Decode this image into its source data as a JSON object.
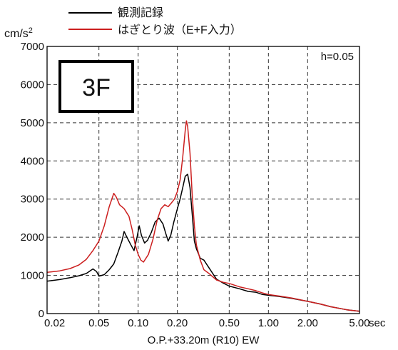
{
  "chart_data": {
    "type": "line",
    "xscale": "log",
    "xlim": [
      0.02,
      5.0
    ],
    "ylim": [
      0,
      7000
    ],
    "xticks": [
      0.02,
      0.05,
      0.1,
      0.2,
      0.5,
      1.0,
      2.0,
      5.0
    ],
    "xtick_labels": [
      "0.02",
      "0.05",
      "0.10",
      "0.20",
      "0.50",
      "1.00",
      "2.00",
      "5.00"
    ],
    "x_unit": "sec",
    "yticks": [
      0,
      1000,
      2000,
      3000,
      4000,
      5000,
      6000,
      7000
    ],
    "ytick_labels": [
      "0",
      "1000",
      "2000",
      "3000",
      "4000",
      "5000",
      "6000",
      "7000"
    ],
    "y_unit": "cm/s",
    "y_unit_exp": "2",
    "xlabel": "O.P.+33.20m (R10) EW",
    "floor_label": "3F",
    "annotation": "h=0.05",
    "grid": true,
    "legend_position": "top",
    "series": [
      {
        "name": "観測記録",
        "color": "#000000",
        "points": [
          [
            0.02,
            850
          ],
          [
            0.025,
            890
          ],
          [
            0.03,
            940
          ],
          [
            0.035,
            990
          ],
          [
            0.04,
            1050
          ],
          [
            0.045,
            1170
          ],
          [
            0.048,
            1100
          ],
          [
            0.05,
            980
          ],
          [
            0.055,
            1020
          ],
          [
            0.06,
            1150
          ],
          [
            0.065,
            1300
          ],
          [
            0.07,
            1600
          ],
          [
            0.075,
            1900
          ],
          [
            0.078,
            2150
          ],
          [
            0.082,
            2000
          ],
          [
            0.088,
            1800
          ],
          [
            0.093,
            1650
          ],
          [
            0.098,
            2000
          ],
          [
            0.102,
            2300
          ],
          [
            0.106,
            2050
          ],
          [
            0.112,
            1850
          ],
          [
            0.118,
            1920
          ],
          [
            0.126,
            2120
          ],
          [
            0.135,
            2400
          ],
          [
            0.145,
            2500
          ],
          [
            0.155,
            2350
          ],
          [
            0.163,
            2100
          ],
          [
            0.17,
            1900
          ],
          [
            0.178,
            2050
          ],
          [
            0.188,
            2400
          ],
          [
            0.2,
            2750
          ],
          [
            0.21,
            3000
          ],
          [
            0.22,
            3300
          ],
          [
            0.23,
            3600
          ],
          [
            0.24,
            3650
          ],
          [
            0.25,
            3300
          ],
          [
            0.26,
            2600
          ],
          [
            0.27,
            1900
          ],
          [
            0.28,
            1700
          ],
          [
            0.3,
            1450
          ],
          [
            0.32,
            1400
          ],
          [
            0.35,
            1200
          ],
          [
            0.4,
            900
          ],
          [
            0.45,
            800
          ],
          [
            0.5,
            720
          ],
          [
            0.6,
            650
          ],
          [
            0.7,
            580
          ],
          [
            0.8,
            560
          ],
          [
            0.9,
            500
          ],
          [
            1.0,
            480
          ],
          [
            1.2,
            450
          ],
          [
            1.5,
            400
          ],
          [
            2.0,
            320
          ],
          [
            2.5,
            250
          ],
          [
            3.0,
            180
          ],
          [
            4.0,
            100
          ],
          [
            5.0,
            60
          ]
        ]
      },
      {
        "name": "はぎとり波（E+F入力）",
        "color": "#cc1f1f",
        "points": [
          [
            0.02,
            1080
          ],
          [
            0.025,
            1120
          ],
          [
            0.03,
            1180
          ],
          [
            0.035,
            1270
          ],
          [
            0.04,
            1420
          ],
          [
            0.045,
            1650
          ],
          [
            0.05,
            1900
          ],
          [
            0.055,
            2300
          ],
          [
            0.06,
            2800
          ],
          [
            0.065,
            3150
          ],
          [
            0.068,
            3050
          ],
          [
            0.072,
            2850
          ],
          [
            0.078,
            2750
          ],
          [
            0.085,
            2550
          ],
          [
            0.09,
            2200
          ],
          [
            0.095,
            1800
          ],
          [
            0.1,
            1550
          ],
          [
            0.105,
            1400
          ],
          [
            0.11,
            1350
          ],
          [
            0.12,
            1550
          ],
          [
            0.13,
            1950
          ],
          [
            0.14,
            2450
          ],
          [
            0.15,
            2750
          ],
          [
            0.16,
            2850
          ],
          [
            0.17,
            2800
          ],
          [
            0.18,
            2900
          ],
          [
            0.19,
            3000
          ],
          [
            0.2,
            3200
          ],
          [
            0.21,
            3500
          ],
          [
            0.22,
            4100
          ],
          [
            0.23,
            4800
          ],
          [
            0.235,
            5050
          ],
          [
            0.24,
            4900
          ],
          [
            0.25,
            4200
          ],
          [
            0.26,
            3100
          ],
          [
            0.27,
            2300
          ],
          [
            0.28,
            1800
          ],
          [
            0.3,
            1400
          ],
          [
            0.32,
            1150
          ],
          [
            0.35,
            1050
          ],
          [
            0.4,
            880
          ],
          [
            0.45,
            820
          ],
          [
            0.5,
            790
          ],
          [
            0.6,
            700
          ],
          [
            0.7,
            650
          ],
          [
            0.8,
            600
          ],
          [
            0.9,
            540
          ],
          [
            1.0,
            500
          ],
          [
            1.2,
            460
          ],
          [
            1.5,
            410
          ],
          [
            2.0,
            320
          ],
          [
            2.5,
            250
          ],
          [
            3.0,
            180
          ],
          [
            4.0,
            100
          ],
          [
            5.0,
            60
          ]
        ]
      }
    ]
  }
}
